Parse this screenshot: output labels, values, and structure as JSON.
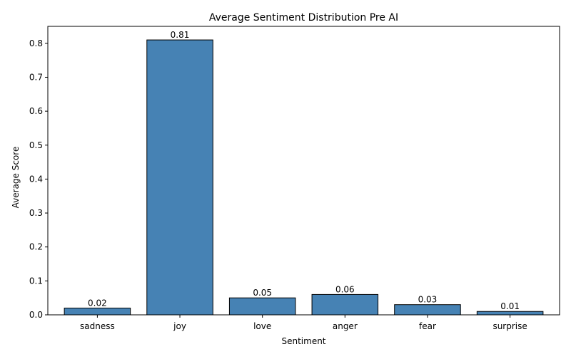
{
  "chart_data": {
    "type": "bar",
    "title": "Average Sentiment Distribution Pre AI",
    "xlabel": "Sentiment",
    "ylabel": "Average Score",
    "categories": [
      "sadness",
      "joy",
      "love",
      "anger",
      "fear",
      "surprise"
    ],
    "values": [
      0.02,
      0.81,
      0.05,
      0.06,
      0.03,
      0.01
    ],
    "data_labels": [
      "0.02",
      "0.81",
      "0.05",
      "0.06",
      "0.03",
      "0.01"
    ],
    "ylim": [
      0,
      0.85
    ],
    "yticks": [
      0.0,
      0.1,
      0.2,
      0.3,
      0.4,
      0.5,
      0.6,
      0.7,
      0.8
    ],
    "ytick_labels": [
      "0.0",
      "0.1",
      "0.2",
      "0.3",
      "0.4",
      "0.5",
      "0.6",
      "0.7",
      "0.8"
    ],
    "grid": false,
    "legend": "none",
    "bar_color": "#4682b4",
    "bar_edge_color": "#000000"
  }
}
